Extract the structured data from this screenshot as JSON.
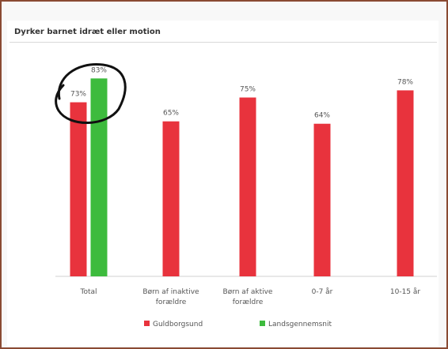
{
  "chart_data": {
    "type": "bar",
    "title": "Dyrker barnet idræt eller motion",
    "categories": [
      "Total",
      "Børn af inaktive forældre",
      "Børn af aktive forældre",
      "0-7 år",
      "10-15 år"
    ],
    "category_lines": [
      [
        "Total"
      ],
      [
        "Børn af inaktive",
        "forældre"
      ],
      [
        "Børn af aktive",
        "forældre"
      ],
      [
        "0-7 år"
      ],
      [
        "10-15 år"
      ]
    ],
    "series": [
      {
        "name": "Guldborgsund",
        "color": "#e8333d",
        "values": [
          73,
          65,
          75,
          64,
          78
        ],
        "labels": [
          "73%",
          "65%",
          "75%",
          "64%",
          "78%"
        ]
      },
      {
        "name": "Landsgennemsnit",
        "color": "#3dbb3d",
        "values": [
          83,
          null,
          null,
          null,
          null
        ],
        "labels": [
          "83%",
          null,
          null,
          null,
          null
        ]
      }
    ],
    "ylim": [
      0,
      100
    ],
    "grid": false,
    "legend_position": "bottom",
    "annotation": "hand-drawn circle around Total"
  }
}
